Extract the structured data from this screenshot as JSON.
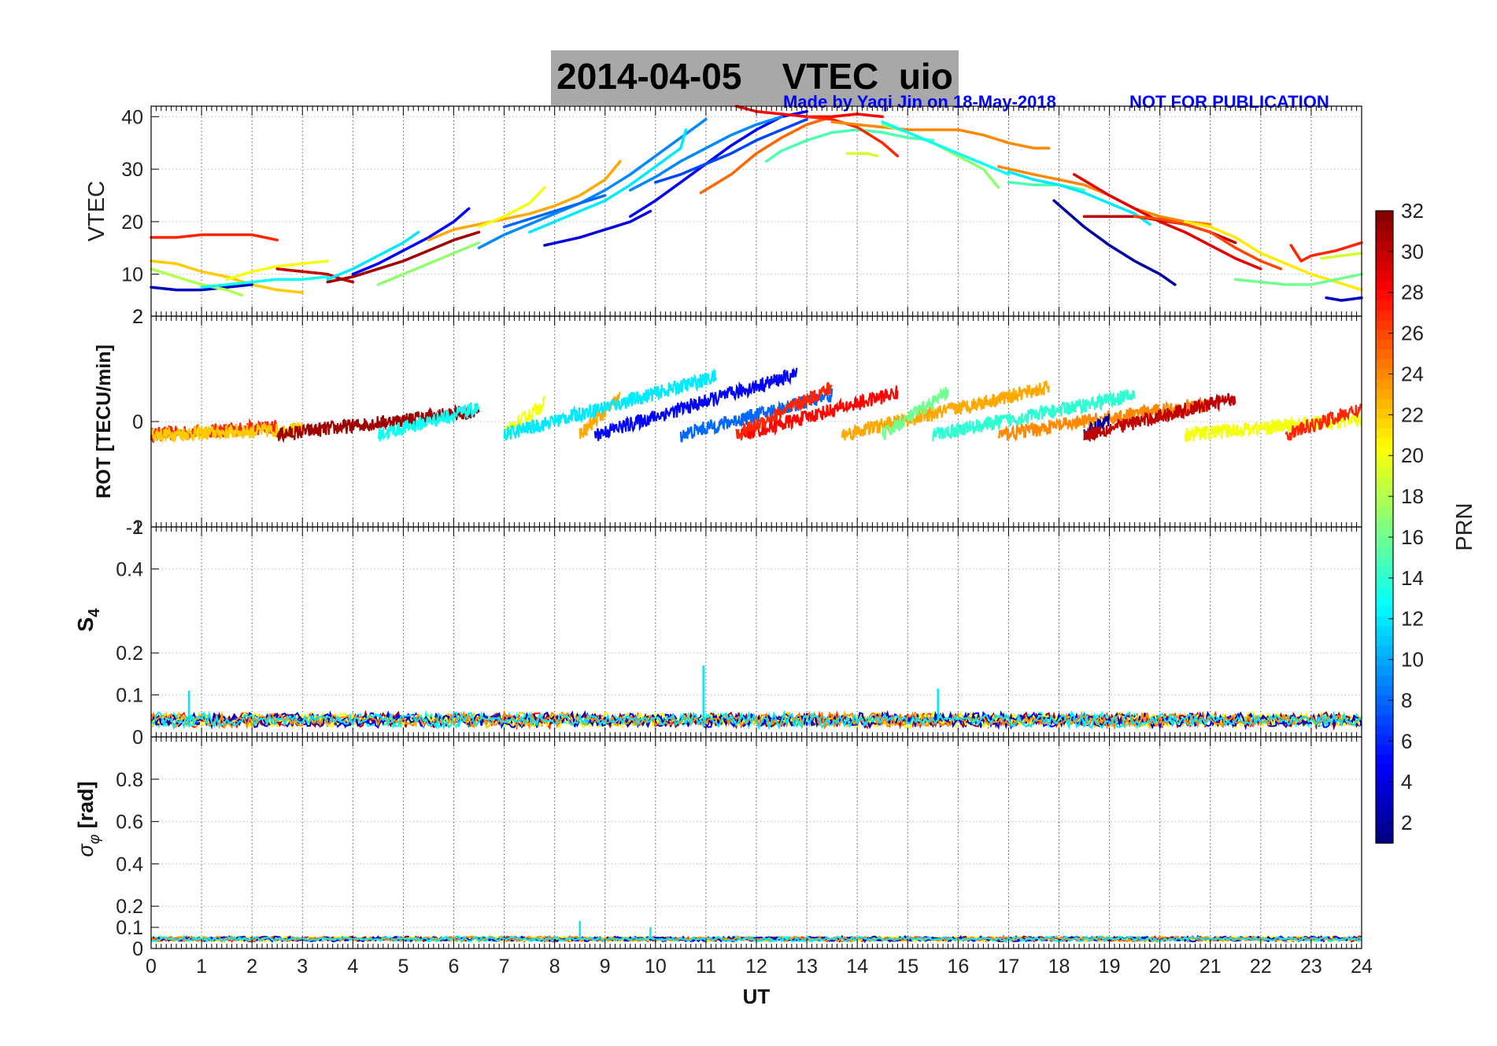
{
  "figure": {
    "title_date": "2014-04-05",
    "title_name": "VTEC  uio",
    "credit": "Made by Yaqi Jin on 18-May-2018",
    "notice": "NOT FOR PUBLICATION"
  },
  "chart_data": [
    {
      "id": "vtec",
      "type": "line",
      "ylabel": "VTEC",
      "xlim": [
        0,
        24
      ],
      "ylim": [
        2,
        42
      ],
      "yticks": [
        "10",
        "20",
        "30",
        "40"
      ],
      "ytick_values": [
        10,
        20,
        30,
        40
      ],
      "bottom_label": "2",
      "grid": true,
      "series_encoding": "color by PRN",
      "tracks": [
        {
          "prn": 27,
          "x": [
            0,
            0.5,
            1,
            1.5,
            2,
            2.5
          ],
          "y": [
            17,
            17,
            17.5,
            17.5,
            17.5,
            16.5
          ]
        },
        {
          "prn": 22,
          "x": [
            0,
            0.5,
            1,
            1.5,
            2,
            2.5,
            3
          ],
          "y": [
            12.5,
            12,
            10.5,
            9.5,
            8,
            7,
            6.5
          ]
        },
        {
          "prn": 3,
          "x": [
            0,
            0.5,
            1,
            1.5,
            2
          ],
          "y": [
            7.5,
            7,
            7,
            7.5,
            8
          ]
        },
        {
          "prn": 18,
          "x": [
            0,
            0.5,
            1,
            1.5,
            1.8
          ],
          "y": [
            11,
            9.5,
            8,
            7,
            6
          ]
        },
        {
          "prn": 20,
          "x": [
            1.5,
            2,
            2.5,
            3,
            3.5
          ],
          "y": [
            9,
            10.5,
            11.5,
            12,
            12.5
          ]
        },
        {
          "prn": 13,
          "x": [
            1,
            1.5,
            2,
            2.5,
            3,
            3.5
          ],
          "y": [
            7.5,
            8,
            8.5,
            9,
            9,
            9.5
          ]
        },
        {
          "prn": 30,
          "x": [
            2.5,
            3,
            3.5,
            3.8,
            4
          ],
          "y": [
            11,
            10.5,
            10,
            9,
            8.5
          ]
        },
        {
          "prn": 31,
          "x": [
            3.5,
            4,
            4.5,
            5,
            5.5,
            6,
            6.5
          ],
          "y": [
            8.5,
            9.5,
            11,
            12.5,
            14.5,
            16.5,
            18
          ]
        },
        {
          "prn": 5,
          "x": [
            4,
            4.5,
            5,
            5.5,
            6,
            6.3
          ],
          "y": [
            10,
            12,
            14.5,
            17,
            20,
            22.5
          ]
        },
        {
          "prn": 12,
          "x": [
            3.5,
            4,
            4.5,
            5,
            5.3
          ],
          "y": [
            9,
            11,
            13.5,
            16,
            18
          ]
        },
        {
          "prn": 17,
          "x": [
            4.5,
            5,
            5.5,
            6,
            6.5
          ],
          "y": [
            8,
            10,
            12,
            14,
            16
          ]
        },
        {
          "prn": 23,
          "x": [
            5.5,
            6,
            6.5,
            7,
            7.5,
            8,
            8.5,
            9,
            9.3
          ],
          "y": [
            16.5,
            18.5,
            19.5,
            20.5,
            21.5,
            23,
            25,
            28,
            31.5
          ]
        },
        {
          "prn": 20,
          "x": [
            6.5,
            7,
            7.5,
            7.8
          ],
          "y": [
            19,
            21,
            23.5,
            26.5
          ]
        },
        {
          "prn": 9,
          "x": [
            6.5,
            7,
            7.5,
            8,
            8.5,
            9,
            9.5,
            10,
            10.5,
            11
          ],
          "y": [
            15,
            17.5,
            19.5,
            21.5,
            23.5,
            26,
            29,
            32.5,
            36,
            39.5
          ]
        },
        {
          "prn": 12,
          "x": [
            7.5,
            8,
            8.5,
            9,
            9.5,
            10,
            10.5,
            10.6
          ],
          "y": [
            18,
            20,
            22,
            24,
            27,
            30.5,
            34,
            37.5
          ]
        },
        {
          "prn": 8,
          "x": [
            7,
            7.5,
            8,
            8.5,
            9
          ],
          "y": [
            19,
            20.5,
            22,
            23.5,
            25
          ]
        },
        {
          "prn": 4,
          "x": [
            7.8,
            8.5,
            9,
            9.5,
            9.9
          ],
          "y": [
            15.5,
            17,
            18.5,
            20,
            22
          ]
        },
        {
          "prn": 5,
          "x": [
            9.5,
            10,
            10.5,
            11,
            11.5,
            12,
            12.5,
            13
          ],
          "y": [
            21,
            24,
            27.5,
            31,
            34.5,
            37.5,
            40,
            41
          ]
        },
        {
          "prn": 9,
          "x": [
            9.5,
            10,
            10.5,
            11,
            11.5,
            12,
            12.5
          ],
          "y": [
            26,
            28.5,
            31.5,
            34,
            36.5,
            38.5,
            40
          ]
        },
        {
          "prn": 7,
          "x": [
            10,
            10.5,
            11,
            11.5,
            12,
            12.5,
            13
          ],
          "y": [
            27.5,
            29,
            31,
            33,
            35.5,
            37.5,
            39.5
          ]
        },
        {
          "prn": 25,
          "x": [
            10.9,
            11.5,
            12,
            12.5,
            13,
            13.5,
            14
          ],
          "y": [
            25.5,
            29,
            33,
            36,
            38.5,
            40,
            40.5
          ]
        },
        {
          "prn": 28,
          "x": [
            11.6,
            12,
            12.5,
            13,
            13.5,
            14,
            14.5
          ],
          "y": [
            42,
            41,
            40.5,
            40,
            40,
            40.5,
            40
          ]
        },
        {
          "prn": 15,
          "x": [
            12.2,
            12.5,
            13,
            13.5,
            14,
            14.5,
            15,
            15.5
          ],
          "y": [
            31.5,
            33.5,
            35.5,
            37,
            37.5,
            37,
            36,
            35.5
          ]
        },
        {
          "prn": 27,
          "x": [
            13,
            13.5,
            14,
            14.5,
            14.8
          ],
          "y": [
            40,
            39.5,
            38,
            35,
            32.5
          ]
        },
        {
          "prn": 24,
          "x": [
            13.5,
            14,
            15,
            16,
            16.5,
            17,
            17.5,
            17.8
          ],
          "y": [
            39,
            38.5,
            37.5,
            37.5,
            36.5,
            35,
            34,
            34
          ]
        },
        {
          "prn": 17,
          "x": [
            14.5,
            15,
            15.5,
            16,
            16.5,
            16.8
          ],
          "y": [
            38.5,
            37,
            35,
            32.5,
            30,
            26.5
          ]
        },
        {
          "prn": 13,
          "x": [
            14.5,
            15,
            15.5,
            16,
            16.5,
            17
          ],
          "y": [
            39,
            37,
            35,
            33,
            31,
            29
          ]
        },
        {
          "prn": 19,
          "x": [
            13.8,
            14.2,
            14.4
          ],
          "y": [
            33,
            33,
            32.5
          ]
        },
        {
          "prn": 15,
          "x": [
            17,
            17.5,
            18,
            18.5
          ],
          "y": [
            27.5,
            27,
            27,
            26
          ]
        },
        {
          "prn": 24,
          "x": [
            16.8,
            17.5,
            18,
            18.5,
            19,
            19.5,
            20,
            20.5,
            21
          ],
          "y": [
            30.5,
            29,
            28,
            27,
            25,
            22.5,
            21,
            20,
            19.5
          ]
        },
        {
          "prn": 12,
          "x": [
            17,
            17.5,
            18,
            18.5,
            19,
            19.5,
            19.8
          ],
          "y": [
            29.5,
            28,
            27,
            25.5,
            23.5,
            21.5,
            19.5
          ]
        },
        {
          "prn": 2,
          "x": [
            17.9,
            18.5,
            19,
            19.5,
            20,
            20.3
          ],
          "y": [
            24,
            19,
            15.5,
            12.5,
            10,
            8
          ]
        },
        {
          "prn": 29,
          "x": [
            18.3,
            19,
            19.5,
            20,
            20.5,
            21,
            21.5,
            22
          ],
          "y": [
            29,
            25,
            22.5,
            20,
            18,
            15.5,
            13,
            11
          ]
        },
        {
          "prn": 30,
          "x": [
            18.5,
            19.5,
            20.5,
            21,
            21.5
          ],
          "y": [
            21,
            21,
            19.5,
            18,
            16
          ]
        },
        {
          "prn": 26,
          "x": [
            19.5,
            20,
            20.5,
            21,
            21.5,
            22,
            22.4
          ],
          "y": [
            21,
            20.5,
            19.5,
            18,
            15,
            12.5,
            11
          ]
        },
        {
          "prn": 21,
          "x": [
            20.5,
            21,
            21.5,
            22,
            22.5,
            23,
            23.5,
            24
          ],
          "y": [
            20,
            19,
            17,
            14,
            12,
            10,
            8.5,
            7
          ]
        },
        {
          "prn": 16,
          "x": [
            21.5,
            22,
            22.5,
            23,
            23.5,
            24
          ],
          "y": [
            9,
            8.5,
            8,
            8,
            9,
            10
          ]
        },
        {
          "prn": 27,
          "x": [
            22.6,
            22.8,
            23,
            23.5,
            24
          ],
          "y": [
            15.5,
            12.5,
            13.5,
            14.5,
            16
          ]
        },
        {
          "prn": 19,
          "x": [
            23.2,
            23.6,
            24
          ],
          "y": [
            13,
            13.5,
            14
          ]
        },
        {
          "prn": 3,
          "x": [
            23.3,
            23.6,
            24
          ],
          "y": [
            5.5,
            5,
            5.5
          ]
        }
      ]
    },
    {
      "id": "rot",
      "type": "line",
      "ylabel": "ROT [TECU/min]",
      "xlim": [
        0,
        24
      ],
      "ylim": [
        -2,
        2
      ],
      "yticks": [
        "0"
      ],
      "ytick_values": [
        0
      ],
      "top_label": "2",
      "bottom_label": "-2",
      "grid": true,
      "series_encoding": "color by PRN",
      "tracks": [
        {
          "prn": 27,
          "x0": 0,
          "x1": 2.5,
          "ramp": 0.15
        },
        {
          "prn": 22,
          "x0": 0,
          "x1": 3,
          "ramp": 0.1
        },
        {
          "prn": 31,
          "x0": 2.5,
          "x1": 6.5,
          "ramp": 0.45
        },
        {
          "prn": 13,
          "x0": 4.5,
          "x1": 6.5,
          "ramp": 0.5
        },
        {
          "prn": 20,
          "x0": 7,
          "x1": 7.8,
          "ramp": 0.6
        },
        {
          "prn": 23,
          "x0": 8.5,
          "x1": 9.3,
          "ramp": 0.7
        },
        {
          "prn": 12,
          "x0": 7,
          "x1": 11.2,
          "ramp": 1.1
        },
        {
          "prn": 5,
          "x0": 8.8,
          "x1": 12.8,
          "ramp": 1.15
        },
        {
          "prn": 8,
          "x0": 10.5,
          "x1": 13.5,
          "ramp": 0.75
        },
        {
          "prn": 28,
          "x0": 11.7,
          "x1": 14.8,
          "ramp": 0.8
        },
        {
          "prn": 27,
          "x0": 11.6,
          "x1": 13.5,
          "ramp": 0.9
        },
        {
          "prn": 23,
          "x0": 13.7,
          "x1": 17.8,
          "ramp": 0.9
        },
        {
          "prn": 16,
          "x0": 14.5,
          "x1": 15.8,
          "ramp": 0.8
        },
        {
          "prn": 14,
          "x0": 15.5,
          "x1": 19.5,
          "ramp": 0.75
        },
        {
          "prn": 24,
          "x0": 16.8,
          "x1": 21,
          "ramp": 0.6
        },
        {
          "prn": 2,
          "x0": 18.5,
          "x1": 19,
          "ramp": 0.3
        },
        {
          "prn": 30,
          "x0": 18.5,
          "x1": 21.5,
          "ramp": 0.7
        },
        {
          "prn": 20,
          "x0": 20.5,
          "x1": 24,
          "ramp": 0.3
        },
        {
          "prn": 27,
          "x0": 22.5,
          "x1": 24,
          "ramp": 0.5
        }
      ]
    },
    {
      "id": "s4",
      "type": "line",
      "ylabel": "S4",
      "xlim": [
        0,
        24
      ],
      "ylim": [
        0,
        0.5
      ],
      "yticks": [
        "0.1",
        "0.2",
        "0.4"
      ],
      "ytick_values": [
        0.1,
        0.2,
        0.4
      ],
      "bottom_label": "0",
      "top_label": "1",
      "grid": true,
      "series_encoding": "color by PRN",
      "baseline": 0.04,
      "noise": 0.03,
      "spikes": [
        {
          "x": 0.75,
          "y": 0.11
        },
        {
          "x": 10.95,
          "y": 0.17
        },
        {
          "x": 15.6,
          "y": 0.115
        }
      ]
    },
    {
      "id": "sigma-phi",
      "type": "line",
      "ylabel": "σφ [rad]",
      "xlim": [
        0,
        24
      ],
      "ylim": [
        0,
        1
      ],
      "yticks": [
        "0",
        "0.1",
        "0.2",
        "0.4",
        "0.6",
        "0.8"
      ],
      "ytick_values": [
        0,
        0.1,
        0.2,
        0.4,
        0.6,
        0.8
      ],
      "xlabel": "UT",
      "xticks": [
        "0",
        "1",
        "2",
        "3",
        "4",
        "5",
        "6",
        "7",
        "8",
        "9",
        "10",
        "11",
        "12",
        "13",
        "14",
        "15",
        "16",
        "17",
        "18",
        "19",
        "20",
        "21",
        "22",
        "23",
        "24"
      ],
      "grid": true,
      "series_encoding": "color by PRN",
      "baseline": 0.045,
      "noise": 0.02,
      "spikes": [
        {
          "x": 8.5,
          "y": 0.13
        },
        {
          "x": 9.9,
          "y": 0.1
        }
      ]
    }
  ],
  "colorbar": {
    "label": "PRN",
    "range": [
      1,
      32
    ],
    "ticks": [
      "2",
      "4",
      "6",
      "8",
      "10",
      "12",
      "14",
      "16",
      "18",
      "20",
      "22",
      "24",
      "26",
      "28",
      "30",
      "32"
    ],
    "tick_values": [
      2,
      4,
      6,
      8,
      10,
      12,
      14,
      16,
      18,
      20,
      22,
      24,
      26,
      28,
      30,
      32
    ],
    "colormap": "jet"
  }
}
